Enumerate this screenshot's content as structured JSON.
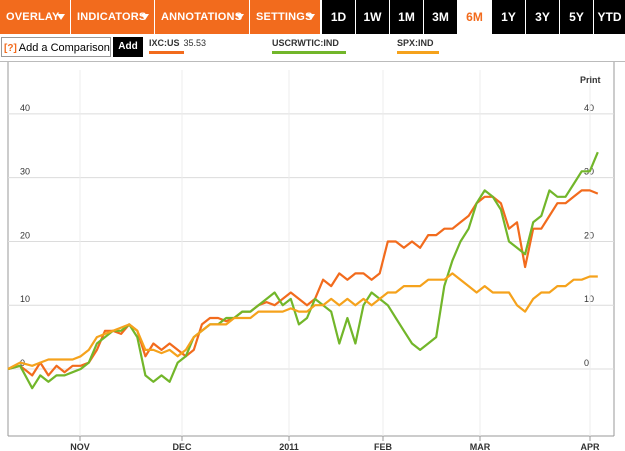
{
  "toolbar": {
    "menus": [
      {
        "label": "OVERLAY"
      },
      {
        "label": "INDICATORS"
      },
      {
        "label": "ANNOTATIONS"
      },
      {
        "label": "SETTINGS"
      }
    ],
    "ranges": [
      "1D",
      "1W",
      "1M",
      "3M",
      "6M",
      "1Y",
      "3Y",
      "5Y",
      "YTD"
    ],
    "active_range": "6M"
  },
  "comparison": {
    "help": "[?]",
    "placeholder": "Add a Comparison",
    "add_label": "Add"
  },
  "legend": [
    {
      "symbol": "IXC:US",
      "value": "35.53",
      "color": "#f26b1d"
    },
    {
      "symbol": "USCRWTIC:IND",
      "value": "",
      "color": "#72b62a"
    },
    {
      "symbol": "SPX:IND",
      "value": "",
      "color": "#f5a21c"
    }
  ],
  "print_label": "Print",
  "colors": {
    "accent": "#f26b1d",
    "ixc": "#f26b1d",
    "oil": "#72b62a",
    "spx": "#f5a21c"
  },
  "chart_data": {
    "type": "line",
    "x_labels": [
      "NOV",
      "DEC",
      "2011",
      "FEB",
      "MAR",
      "APR"
    ],
    "y_ticks": [
      0,
      10,
      20,
      30,
      40
    ],
    "ylim": [
      -10.5,
      45
    ],
    "xlim": [
      0,
      150
    ],
    "grid": true,
    "series": [
      {
        "name": "IXC:US",
        "color": "#f26b1d",
        "points": [
          [
            0,
            0
          ],
          [
            3,
            0.5
          ],
          [
            6,
            -1
          ],
          [
            8,
            1
          ],
          [
            10,
            -1
          ],
          [
            12,
            0.5
          ],
          [
            14,
            -0.5
          ],
          [
            16,
            0.5
          ],
          [
            18,
            0.5
          ],
          [
            20,
            1
          ],
          [
            22,
            3
          ],
          [
            24,
            6
          ],
          [
            26,
            6
          ],
          [
            28,
            5.5
          ],
          [
            30,
            7
          ],
          [
            32,
            6
          ],
          [
            34,
            2
          ],
          [
            36,
            4
          ],
          [
            38,
            3
          ],
          [
            40,
            4
          ],
          [
            42,
            3
          ],
          [
            44,
            2
          ],
          [
            46,
            3
          ],
          [
            48,
            7
          ],
          [
            50,
            8
          ],
          [
            52,
            8
          ],
          [
            54,
            7.5
          ],
          [
            56,
            8
          ],
          [
            58,
            9
          ],
          [
            60,
            9
          ],
          [
            62,
            10
          ],
          [
            64,
            10.5
          ],
          [
            66,
            10
          ],
          [
            68,
            11
          ],
          [
            70,
            12
          ],
          [
            72,
            11
          ],
          [
            74,
            10
          ],
          [
            76,
            11
          ],
          [
            78,
            14
          ],
          [
            80,
            13
          ],
          [
            82,
            15
          ],
          [
            84,
            14
          ],
          [
            86,
            15
          ],
          [
            88,
            15
          ],
          [
            90,
            14
          ],
          [
            92,
            15
          ],
          [
            94,
            20
          ],
          [
            96,
            20
          ],
          [
            98,
            19
          ],
          [
            100,
            20
          ],
          [
            102,
            19
          ],
          [
            104,
            21
          ],
          [
            106,
            21
          ],
          [
            108,
            22
          ],
          [
            110,
            22
          ],
          [
            112,
            23
          ],
          [
            114,
            24
          ],
          [
            116,
            26
          ],
          [
            118,
            27
          ],
          [
            120,
            27
          ],
          [
            122,
            26
          ],
          [
            124,
            22
          ],
          [
            126,
            23
          ],
          [
            128,
            16
          ],
          [
            130,
            22
          ],
          [
            132,
            22
          ],
          [
            134,
            24
          ],
          [
            136,
            26
          ],
          [
            138,
            26
          ],
          [
            140,
            27
          ],
          [
            142,
            28
          ],
          [
            144,
            28
          ],
          [
            146,
            27.5
          ]
        ]
      },
      {
        "name": "USCRWTIC:IND",
        "color": "#72b62a",
        "points": [
          [
            0,
            0
          ],
          [
            3,
            0.5
          ],
          [
            6,
            -3
          ],
          [
            8,
            -1
          ],
          [
            10,
            -2
          ],
          [
            12,
            -1
          ],
          [
            14,
            -1
          ],
          [
            16,
            -0.5
          ],
          [
            18,
            0
          ],
          [
            20,
            1
          ],
          [
            22,
            4
          ],
          [
            24,
            5
          ],
          [
            26,
            6
          ],
          [
            28,
            6
          ],
          [
            30,
            7
          ],
          [
            32,
            5
          ],
          [
            34,
            -1
          ],
          [
            36,
            -2
          ],
          [
            38,
            -1
          ],
          [
            40,
            -2
          ],
          [
            42,
            1
          ],
          [
            44,
            2
          ],
          [
            46,
            5
          ],
          [
            48,
            6
          ],
          [
            50,
            7
          ],
          [
            52,
            7
          ],
          [
            54,
            8
          ],
          [
            56,
            8
          ],
          [
            58,
            9
          ],
          [
            60,
            9
          ],
          [
            62,
            10
          ],
          [
            64,
            11
          ],
          [
            66,
            12
          ],
          [
            68,
            10
          ],
          [
            70,
            11
          ],
          [
            72,
            7
          ],
          [
            74,
            8
          ],
          [
            76,
            11
          ],
          [
            78,
            10
          ],
          [
            80,
            9
          ],
          [
            82,
            4
          ],
          [
            84,
            8
          ],
          [
            86,
            4
          ],
          [
            88,
            10
          ],
          [
            90,
            12
          ],
          [
            92,
            11
          ],
          [
            94,
            10
          ],
          [
            96,
            8
          ],
          [
            98,
            6
          ],
          [
            100,
            4
          ],
          [
            102,
            3
          ],
          [
            104,
            4
          ],
          [
            106,
            5
          ],
          [
            108,
            13
          ],
          [
            110,
            17
          ],
          [
            112,
            20
          ],
          [
            114,
            22
          ],
          [
            116,
            26
          ],
          [
            118,
            28
          ],
          [
            120,
            27
          ],
          [
            122,
            25
          ],
          [
            124,
            20
          ],
          [
            126,
            19
          ],
          [
            128,
            18
          ],
          [
            130,
            23
          ],
          [
            132,
            24
          ],
          [
            134,
            28
          ],
          [
            136,
            27
          ],
          [
            138,
            27
          ],
          [
            140,
            29
          ],
          [
            142,
            31
          ],
          [
            144,
            31
          ],
          [
            146,
            34
          ]
        ]
      },
      {
        "name": "SPX:IND",
        "color": "#f5a21c",
        "points": [
          [
            0,
            0
          ],
          [
            3,
            1
          ],
          [
            6,
            0.5
          ],
          [
            8,
            1
          ],
          [
            10,
            1.5
          ],
          [
            12,
            1.5
          ],
          [
            14,
            1.5
          ],
          [
            16,
            1.5
          ],
          [
            18,
            2
          ],
          [
            20,
            3
          ],
          [
            22,
            5
          ],
          [
            24,
            5.5
          ],
          [
            26,
            6
          ],
          [
            28,
            6.5
          ],
          [
            30,
            7
          ],
          [
            32,
            6
          ],
          [
            34,
            3
          ],
          [
            36,
            3
          ],
          [
            38,
            2.5
          ],
          [
            40,
            3
          ],
          [
            42,
            2
          ],
          [
            44,
            3
          ],
          [
            46,
            5
          ],
          [
            48,
            6
          ],
          [
            50,
            7
          ],
          [
            52,
            7
          ],
          [
            54,
            7
          ],
          [
            56,
            8
          ],
          [
            58,
            8
          ],
          [
            60,
            8
          ],
          [
            62,
            9
          ],
          [
            64,
            9
          ],
          [
            66,
            9
          ],
          [
            68,
            9
          ],
          [
            70,
            9.5
          ],
          [
            72,
            9
          ],
          [
            74,
            9
          ],
          [
            76,
            10
          ],
          [
            78,
            10
          ],
          [
            80,
            11
          ],
          [
            82,
            10
          ],
          [
            84,
            11
          ],
          [
            86,
            10
          ],
          [
            88,
            11
          ],
          [
            90,
            10
          ],
          [
            92,
            11
          ],
          [
            94,
            12
          ],
          [
            96,
            12
          ],
          [
            98,
            13
          ],
          [
            100,
            13
          ],
          [
            102,
            13
          ],
          [
            104,
            14
          ],
          [
            106,
            14
          ],
          [
            108,
            14
          ],
          [
            110,
            15
          ],
          [
            112,
            14
          ],
          [
            114,
            13
          ],
          [
            116,
            12
          ],
          [
            118,
            13
          ],
          [
            120,
            12
          ],
          [
            122,
            12
          ],
          [
            124,
            12
          ],
          [
            126,
            10
          ],
          [
            128,
            9
          ],
          [
            130,
            11
          ],
          [
            132,
            12
          ],
          [
            134,
            12
          ],
          [
            136,
            13
          ],
          [
            138,
            13
          ],
          [
            140,
            14
          ],
          [
            142,
            14
          ],
          [
            144,
            14.5
          ],
          [
            146,
            14.5
          ]
        ]
      }
    ]
  }
}
